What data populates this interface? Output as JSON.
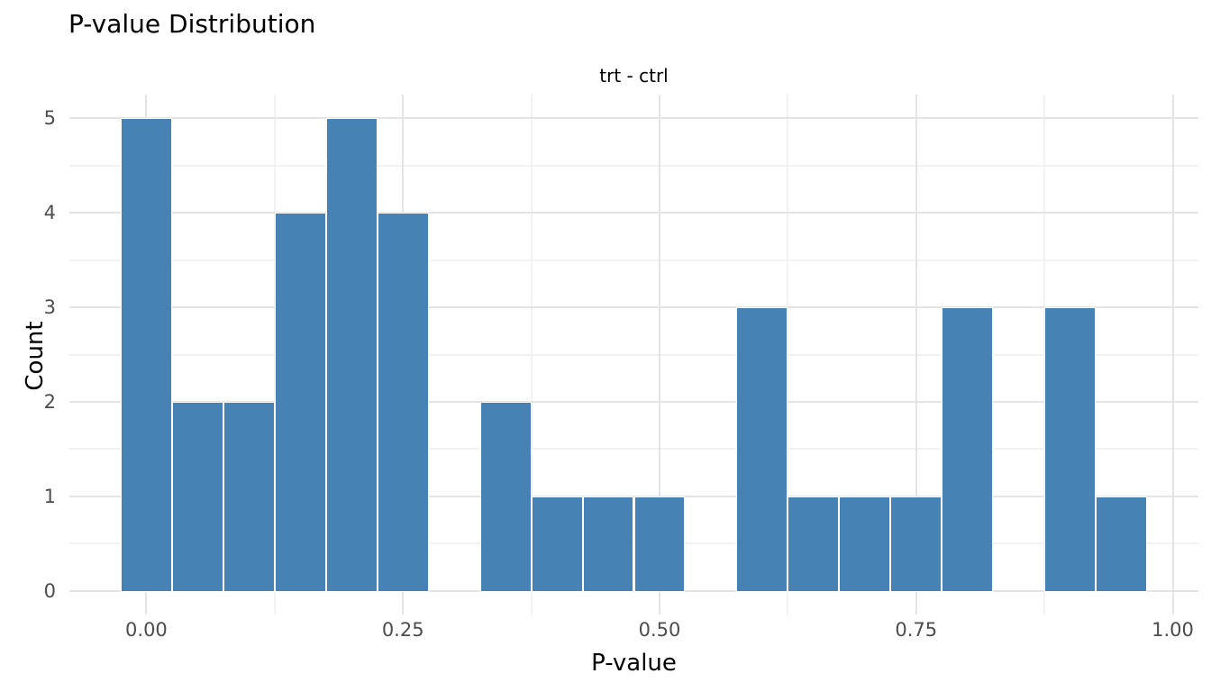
{
  "title": "P-value Distribution",
  "facet_label": "trt - ctrl",
  "colors": {
    "bar_fill": "#4682b4",
    "bar_border": "#ffffff",
    "grid_major": "#e4e4e4",
    "grid_minor": "#f2f2f2",
    "text_primary": "#000000",
    "text_tick": "#4d4d4d",
    "background": "#ffffff"
  },
  "chart_data": {
    "type": "bar",
    "subtype": "histogram",
    "title": "P-value Distribution",
    "subtitle": "trt - ctrl",
    "xlabel": "P-value",
    "ylabel": "Count",
    "bin_width": 0.05,
    "bins": [
      {
        "center": 0.0,
        "count": 5
      },
      {
        "center": 0.05,
        "count": 2
      },
      {
        "center": 0.1,
        "count": 2
      },
      {
        "center": 0.15,
        "count": 4
      },
      {
        "center": 0.2,
        "count": 5
      },
      {
        "center": 0.25,
        "count": 4
      },
      {
        "center": 0.3,
        "count": 0
      },
      {
        "center": 0.35,
        "count": 2
      },
      {
        "center": 0.4,
        "count": 1
      },
      {
        "center": 0.45,
        "count": 1
      },
      {
        "center": 0.5,
        "count": 1
      },
      {
        "center": 0.55,
        "count": 0
      },
      {
        "center": 0.6,
        "count": 3
      },
      {
        "center": 0.65,
        "count": 1
      },
      {
        "center": 0.7,
        "count": 1
      },
      {
        "center": 0.75,
        "count": 1
      },
      {
        "center": 0.8,
        "count": 3
      },
      {
        "center": 0.85,
        "count": 0
      },
      {
        "center": 0.9,
        "count": 3
      },
      {
        "center": 0.95,
        "count": 1
      }
    ],
    "x_ticks": [
      {
        "value": 0.0,
        "label": "0.00"
      },
      {
        "value": 0.25,
        "label": "0.25"
      },
      {
        "value": 0.5,
        "label": "0.50"
      },
      {
        "value": 0.75,
        "label": "0.75"
      },
      {
        "value": 1.0,
        "label": "1.00"
      }
    ],
    "y_ticks": [
      {
        "value": 0,
        "label": "0"
      },
      {
        "value": 1,
        "label": "1"
      },
      {
        "value": 2,
        "label": "2"
      },
      {
        "value": 3,
        "label": "3"
      },
      {
        "value": 4,
        "label": "4"
      },
      {
        "value": 5,
        "label": "5"
      }
    ],
    "x_minor_breaks": [
      0.125,
      0.375,
      0.625,
      0.875
    ],
    "y_minor_breaks": [
      0.5,
      1.5,
      2.5,
      3.5,
      4.5
    ],
    "xlim": [
      -0.075,
      1.025
    ],
    "ylim": [
      -0.25,
      5.25
    ],
    "grid": "major+minor",
    "legend": "none"
  }
}
